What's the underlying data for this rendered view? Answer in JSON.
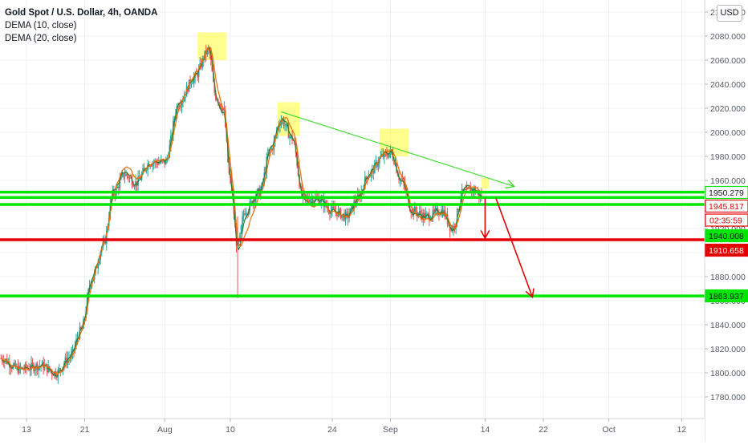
{
  "header": {
    "symbol_line": "Gold Spot / U.S. Dollar, 4h, OANDA",
    "indicator_1": "DEMA (10, close)",
    "indicator_2": "DEMA (20, close)",
    "currency": "USD"
  },
  "chart_data": {
    "type": "candlestick",
    "title": "Gold Spot / U.S. Dollar, 4h, OANDA",
    "xlabel": "",
    "ylabel": "",
    "ylim": [
      1760,
      2120
    ],
    "y_ticks": [
      1780,
      1800,
      1820,
      1840,
      1860,
      1880,
      1900,
      1920,
      1940,
      1960,
      1980,
      2000,
      2020,
      2040,
      2060,
      2080,
      2100
    ],
    "y_tick_labels": [
      "1780.000",
      "1800.000",
      "1820.000",
      "1840.000",
      "1860.000",
      "1880.000",
      "1900.000",
      "1920.000",
      "1940.000",
      "1960.000",
      "1980.000",
      "2000.000",
      "2020.000",
      "2040.000",
      "2060.000",
      "2080.000",
      "2100.000"
    ],
    "x_ticks": [
      {
        "label": "13",
        "day": 13
      },
      {
        "label": "21",
        "day": 21
      },
      {
        "label": "Aug",
        "day": 32
      },
      {
        "label": "10",
        "day": 41
      },
      {
        "label": "24",
        "day": 55
      },
      {
        "label": "Sep",
        "day": 63
      },
      {
        "label": "14",
        "day": 76
      },
      {
        "label": "22",
        "day": 84
      },
      {
        "label": "Oct",
        "day": 93
      },
      {
        "label": "12",
        "day": 103
      }
    ],
    "series": [
      {
        "name": "DEMA (10, close)",
        "color": "#2e7d32"
      },
      {
        "name": "DEMA (20, close)",
        "color": "#ef6c00"
      }
    ],
    "price_path": [
      {
        "day": 9.5,
        "price": 1812
      },
      {
        "day": 12,
        "price": 1803
      },
      {
        "day": 15,
        "price": 1806
      },
      {
        "day": 17,
        "price": 1800
      },
      {
        "day": 19,
        "price": 1813
      },
      {
        "day": 20.5,
        "price": 1835
      },
      {
        "day": 22,
        "price": 1878
      },
      {
        "day": 23.5,
        "price": 1905
      },
      {
        "day": 25,
        "price": 1950
      },
      {
        "day": 26.5,
        "price": 1965
      },
      {
        "day": 28,
        "price": 1958
      },
      {
        "day": 30,
        "price": 1975
      },
      {
        "day": 32,
        "price": 1975
      },
      {
        "day": 34,
        "price": 2025
      },
      {
        "day": 36,
        "price": 2045
      },
      {
        "day": 38,
        "price": 2068
      },
      {
        "day": 39,
        "price": 2030
      },
      {
        "day": 40,
        "price": 2020
      },
      {
        "day": 41,
        "price": 1960
      },
      {
        "day": 42,
        "price": 1905
      },
      {
        "day": 43,
        "price": 1935
      },
      {
        "day": 45,
        "price": 1950
      },
      {
        "day": 46.5,
        "price": 1985
      },
      {
        "day": 48,
        "price": 2010
      },
      {
        "day": 49.5,
        "price": 1995
      },
      {
        "day": 51,
        "price": 1945
      },
      {
        "day": 53,
        "price": 1945
      },
      {
        "day": 55,
        "price": 1935
      },
      {
        "day": 57,
        "price": 1930
      },
      {
        "day": 58.5,
        "price": 1945
      },
      {
        "day": 60,
        "price": 1965
      },
      {
        "day": 62,
        "price": 1980
      },
      {
        "day": 63,
        "price": 1983
      },
      {
        "day": 64.5,
        "price": 1960
      },
      {
        "day": 66,
        "price": 1935
      },
      {
        "day": 68,
        "price": 1930
      },
      {
        "day": 70,
        "price": 1935
      },
      {
        "day": 71.5,
        "price": 1920
      },
      {
        "day": 73,
        "price": 1950
      },
      {
        "day": 74.5,
        "price": 1952
      },
      {
        "day": 75.5,
        "price": 1946
      }
    ],
    "horizontal_levels": [
      {
        "price": 1950.279,
        "label": "1950.279",
        "color": "#00e600",
        "label_style": "outline"
      },
      {
        "price": 1945.817,
        "label": "1945.817",
        "color": "#00e600",
        "label_style": "outline-red"
      },
      {
        "price": 1940.008,
        "label": "1940.008",
        "color": "#00e600",
        "label_style": "fill"
      },
      {
        "price": 1910.658,
        "label": "1910.658",
        "color": "#e50000",
        "label_style": "fill"
      },
      {
        "price": 1863.937,
        "label": "1863.937",
        "color": "#00e600",
        "label_style": "fill"
      }
    ],
    "countdown_label": "02:35:59",
    "trend_line": {
      "from": {
        "day": 48,
        "price": 2017
      },
      "to": {
        "day": 80,
        "price": 1955
      },
      "color": "#44dd33"
    },
    "down_arrows": [
      {
        "from": {
          "day": 76,
          "price": 1945
        },
        "to": {
          "day": 76,
          "price": 1912
        }
      },
      {
        "from": {
          "day": 77.5,
          "price": 1945
        },
        "to": {
          "day": 82.5,
          "price": 1863
        }
      }
    ],
    "highlight_boxes": [
      {
        "day_from": 36.5,
        "day_to": 40.5,
        "price_from": 2060,
        "price_to": 2083
      },
      {
        "day_from": 47.5,
        "day_to": 50.5,
        "price_from": 1997,
        "price_to": 2025
      },
      {
        "day_from": 61.5,
        "day_to": 65.5,
        "price_from": 1980,
        "price_to": 2003
      },
      {
        "day_from": 75.5,
        "day_to": 76.5,
        "price_from": 1953,
        "price_to": 1962
      }
    ],
    "grid": true,
    "legend": "top-left"
  }
}
